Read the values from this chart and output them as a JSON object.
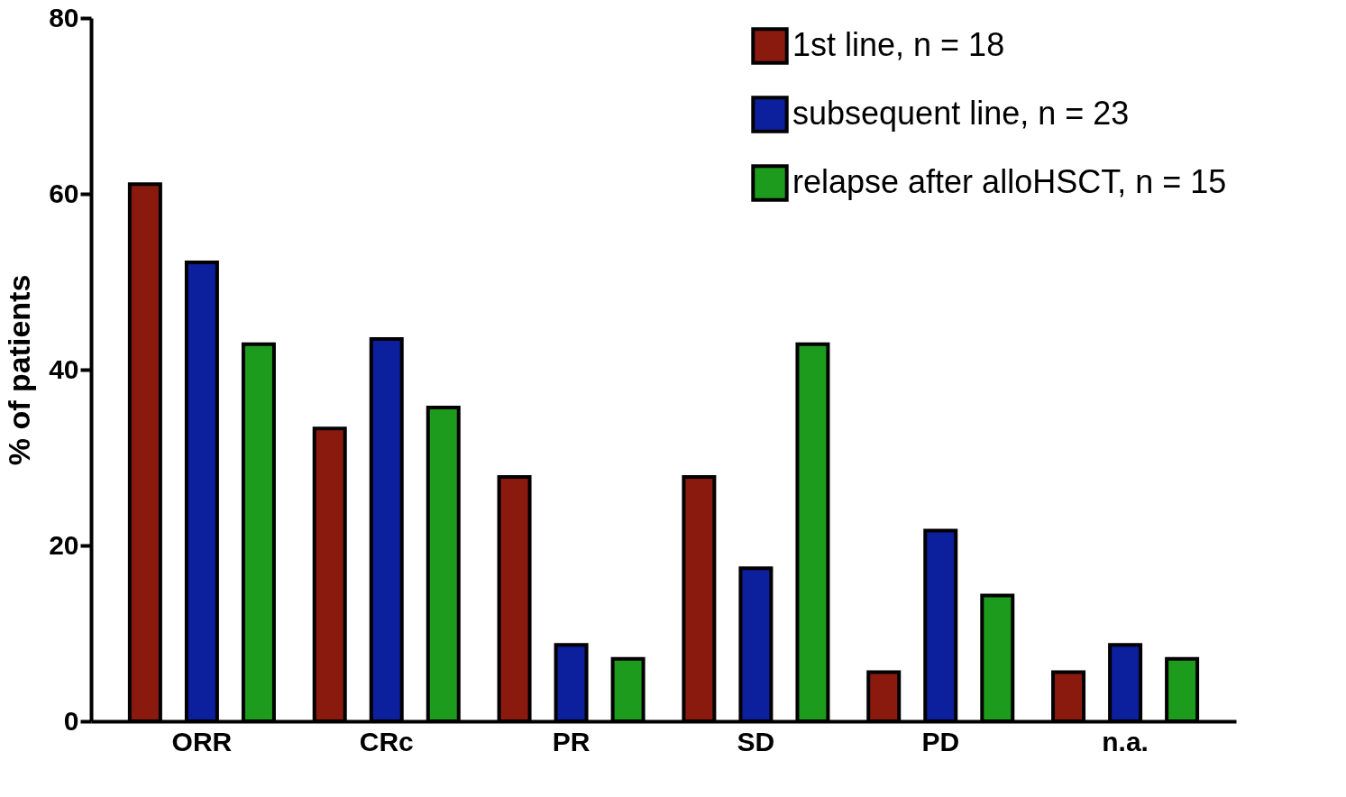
{
  "chart_data": {
    "type": "bar",
    "ylabel": "% of patients",
    "categories": [
      "ORR",
      "CRc",
      "PR",
      "SD",
      "PD",
      "n.a."
    ],
    "series": [
      {
        "name": "1st line, n = 18",
        "color": "#8b1a0e",
        "values": [
          61.1,
          33.3,
          27.8,
          27.8,
          5.6,
          5.6
        ]
      },
      {
        "name": "subsequent line, n = 23",
        "color": "#0c1f9c",
        "values": [
          52.2,
          43.5,
          8.7,
          17.4,
          21.7,
          8.7
        ]
      },
      {
        "name": "relapse after alloHSCT, n = 15",
        "color": "#1c9b1c",
        "values": [
          42.9,
          35.7,
          7.1,
          42.9,
          14.3,
          7.1
        ]
      }
    ],
    "ylim": [
      0,
      80
    ],
    "yticks": [
      0,
      20,
      40,
      60,
      80
    ],
    "grid": false,
    "legend": "top right"
  }
}
